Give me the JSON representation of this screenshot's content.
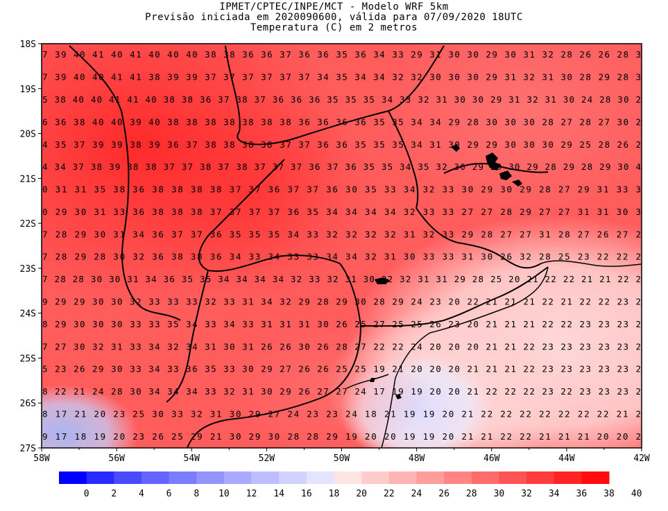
{
  "header": {
    "line1": "IPMET/CPTEC/INPE/MCT - Modelo WRF 5km",
    "line2": "Previsão iniciada em 2020090600, válida para 07/09/2020 18UTC",
    "line3": "Temperatura (C) em 2 metros"
  },
  "map": {
    "lon_labels": [
      "58W",
      "56W",
      "54W",
      "52W",
      "50W",
      "48W",
      "46W",
      "44W",
      "42W"
    ],
    "lat_labels": [
      "18S",
      "19S",
      "20S",
      "21S",
      "22S",
      "23S",
      "24S",
      "25S",
      "26S",
      "27S"
    ],
    "lon_range": [
      -58,
      -42
    ],
    "lat_range": [
      -18,
      -27
    ],
    "grid_rows": [
      "7 39 40 41 40 41 40 40 40 38 38 36 36 37 36 36 35 36 34 33 29 31 30 30 29 30 31 32 28 26 26 28 3",
      "7 39 40 40 41 41 38 39 39 37 37 37 37 37 37 34 35 34 34 32 32 30 30 30 29 31 32 31 30 28 29 28 3",
      "5 38 40 40 41 41 40 38 38 36 37 38 37 36 36 36 35 35 35 34 33 32 31 30 30 29 31 32 31 30 24 28 30 2",
      "6 36 38 40 40 39 40 38 38 38 38 38 38 38 36 36 36 36 35 35 34 34 29 28 30 30 30 28 27 28 27 30 2",
      "4 35 37 39 39 38 39 36 37 38 38 38 38 37 37 36 36 35 35 35 34 31 30 29 29 30 30 30 29 25 28 26 2",
      "4 34 37 38 39 38 38 37 37 38 37 38 37 37 37 36 37 36 35 35 34 35 32 30 29 29 30 29 28 29 28 29 30 4",
      "0 31 31 35 38 36 38 38 38 38 37 37 36 37 37 36 30 35 33 34 32 33 30 29 30 29 28 27 29 31 33 3",
      "0 29 30 31 33 36 38 38 38 37 37 37 37 36 35 34 34 34 34 32 33 33 27 27 28 29 27 27 31 31 30 3",
      "7 28 29 30 31 34 36 37 37 36 35 35 35 34 33 32 32 32 32 31 32 33 29 28 27 27 31 28 27 26 27 2",
      "7 28 29 28 30 32 36 38 38 36 34 33 34 33 33 34 34 32 31 30 33 33 31 30 26 32 28 25 23 22 22 2",
      "7 28 28 30 30 31 34 36 35 35 34 34 34 34 32 33 32 31 30 32 32 31 31 29 28 25 20 21 22 22 21 21 22 2",
      "9 29 29 30 30 32 33 33 33 32 33 31 34 32 29 28 29 30 28 29 24 23 20 22 21 21 21 22 21 22 22 23 2",
      "8 29 30 30 30 33 33 35 34 33 34 33 31 31 31 30 26 25 27 25 25 26 23 20 21 21 21 22 22 23 23 23 2",
      "7 27 30 32 31 33 34 32 34 31 30 31 26 26 30 26 28 27 22 22 24 20 20 20 21 21 22 23 23 23 23 23 2",
      "5 23 26 29 30 33 34 33 36 35 33 30 29 27 26 26 25 25 19 21 20 20 20 21 21 21 22 23 23 23 23 23 2",
      "8 22 21 24 28 30 34 34 34 33 32 31 30 29 26 27 27 24 17 19 19 20 20 21 22 22 22 23 22 23 23 23 2",
      "8 17 21 20 23 25 30 33 32 31 30 29 27 24 23 23 24 18 21 19 19 20 21 22 22 22 22 22 22 22 21 2",
      "9 17 18 19 20 23 26 25 29 21 30 29 30 28 28 29 19 20 20 19 19 20 21 21 22 22 21 21 21 20 20 2"
    ]
  },
  "colorbar": {
    "labels": [
      "0",
      "2",
      "4",
      "6",
      "8",
      "10",
      "12",
      "14",
      "16",
      "18",
      "20",
      "22",
      "24",
      "26",
      "28",
      "30",
      "32",
      "34",
      "36",
      "38",
      "40"
    ],
    "colors": [
      "#0000ff",
      "#2a2aff",
      "#4a4aff",
      "#6464ff",
      "#7c7cff",
      "#9494ff",
      "#aaaaff",
      "#bebeff",
      "#d2d2ff",
      "#e4e4ff",
      "#ffe4e4",
      "#ffcccc",
      "#ffb4b4",
      "#ff9c9c",
      "#ff8484",
      "#ff6c6c",
      "#ff5454",
      "#ff3c3c",
      "#ff2424",
      "#ff0c0c"
    ]
  }
}
